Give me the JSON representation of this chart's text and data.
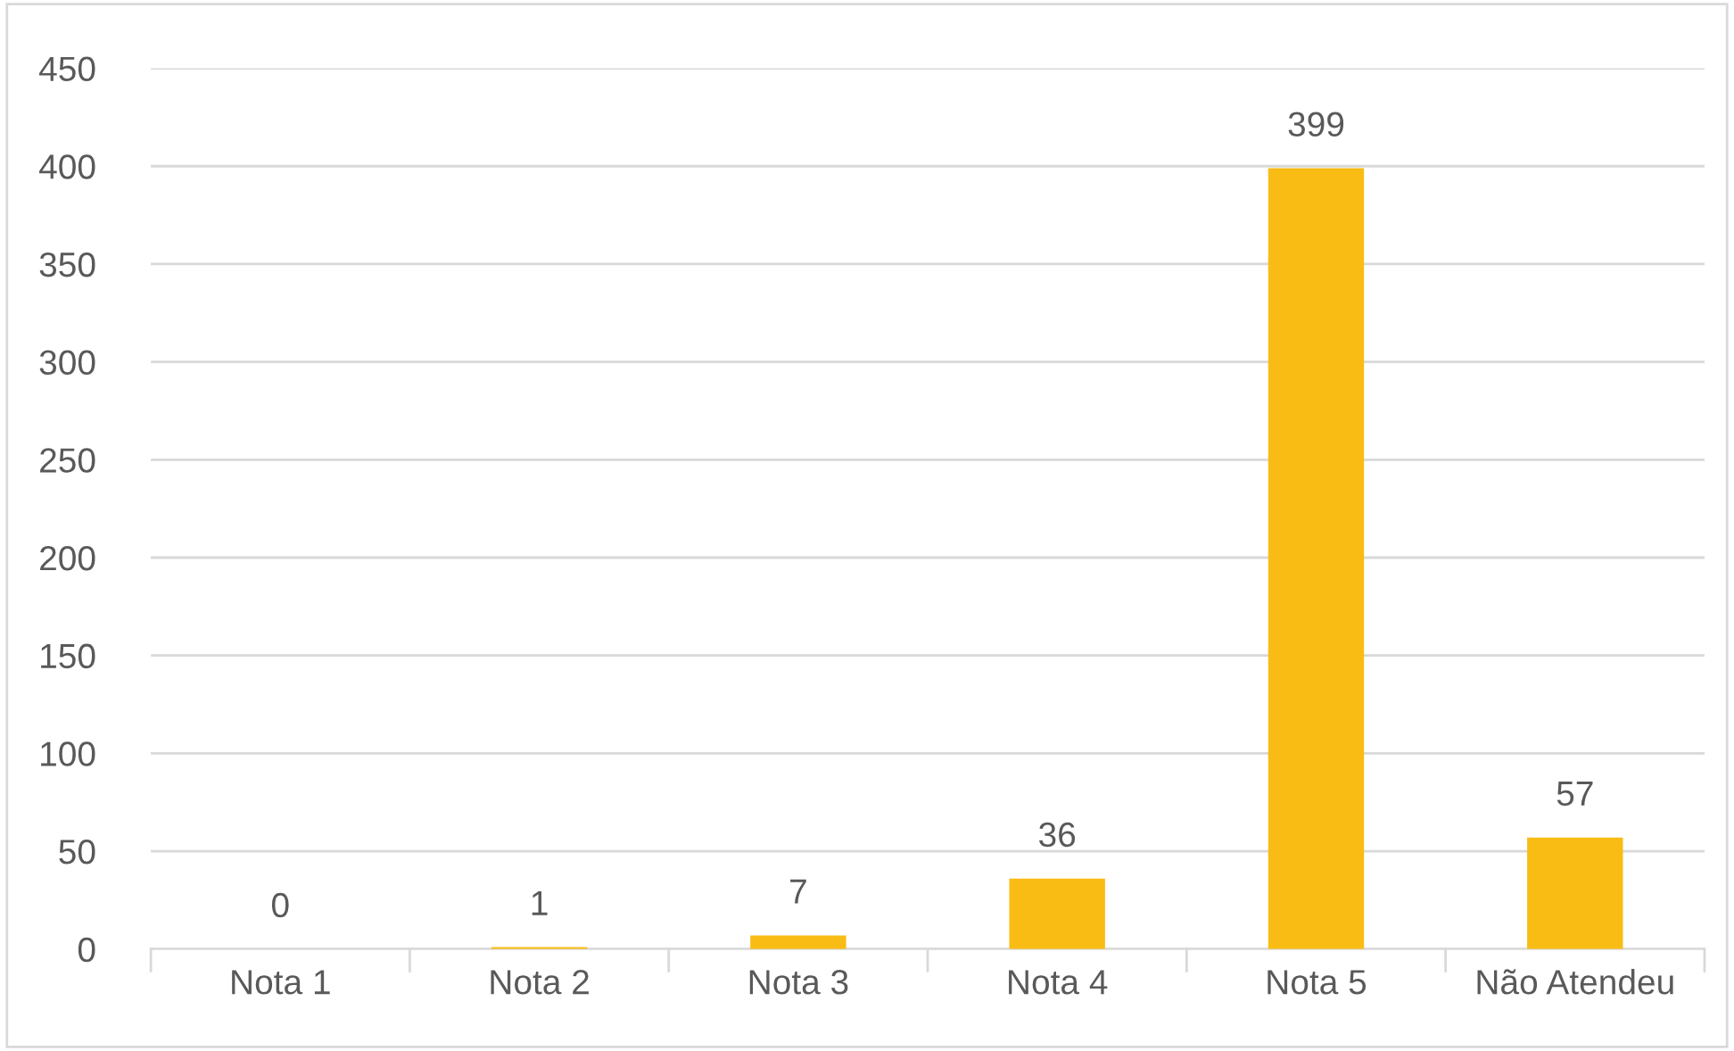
{
  "chart_data": {
    "type": "bar",
    "categories": [
      "Nota 1",
      "Nota 2",
      "Nota 3",
      "Nota 4",
      "Nota 5",
      "Não Atendeu"
    ],
    "values": [
      0,
      1,
      7,
      36,
      399,
      57
    ],
    "color": "#f9bc15",
    "ylim": [
      0,
      450
    ],
    "yticks": [
      0,
      50,
      100,
      150,
      200,
      250,
      300,
      350,
      400,
      450
    ],
    "grid": "y",
    "data_labels": true
  }
}
